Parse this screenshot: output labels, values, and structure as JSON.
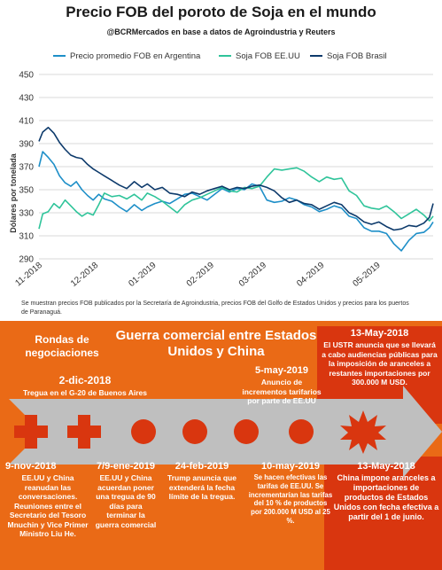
{
  "chart_data": {
    "type": "line",
    "title": "Precio FOB del poroto de Soja en el mundo",
    "subtitle": "@BCRMercados en base a datos de Agroindustria y Reuters",
    "ylabel": "Dólares por tonelada",
    "ylim": [
      290,
      450
    ],
    "yticks": [
      290,
      310,
      330,
      350,
      370,
      390,
      410,
      430,
      450
    ],
    "xlim": [
      "2018-11-01",
      "2019-05-31"
    ],
    "xticks": [
      "2018-11-01",
      "2018-12-01",
      "2019-01-01",
      "2019-02-01",
      "2019-03-01",
      "2019-04-01",
      "2019-05-01"
    ],
    "xtick_labels": [
      "11-2018",
      "12-2018",
      "01-2019",
      "02-2019",
      "03-2019",
      "04-2019",
      "05-2019"
    ],
    "grid": true,
    "legend_position": "top",
    "series": [
      {
        "name": "Precio promedio FOB en Argentina",
        "color": "#1e8fc8",
        "points": [
          [
            "2018-11-01",
            370
          ],
          [
            "2018-11-03",
            383
          ],
          [
            "2018-11-06",
            378
          ],
          [
            "2018-11-09",
            372
          ],
          [
            "2018-11-12",
            362
          ],
          [
            "2018-11-15",
            356
          ],
          [
            "2018-11-18",
            353
          ],
          [
            "2018-11-21",
            357
          ],
          [
            "2018-11-24",
            350
          ],
          [
            "2018-11-27",
            345
          ],
          [
            "2018-11-30",
            341
          ],
          [
            "2018-12-03",
            346
          ],
          [
            "2018-12-06",
            342
          ],
          [
            "2018-12-10",
            340
          ],
          [
            "2018-12-14",
            335
          ],
          [
            "2018-12-18",
            331
          ],
          [
            "2018-12-22",
            337
          ],
          [
            "2018-12-26",
            332
          ],
          [
            "2018-12-29",
            335
          ],
          [
            "2019-01-02",
            338
          ],
          [
            "2019-01-06",
            340
          ],
          [
            "2019-01-10",
            338
          ],
          [
            "2019-01-14",
            342
          ],
          [
            "2019-01-18",
            346
          ],
          [
            "2019-01-22",
            347
          ],
          [
            "2019-01-26",
            344
          ],
          [
            "2019-01-30",
            341
          ],
          [
            "2019-02-03",
            346
          ],
          [
            "2019-02-07",
            351
          ],
          [
            "2019-02-11",
            348
          ],
          [
            "2019-02-15",
            351
          ],
          [
            "2019-02-19",
            350
          ],
          [
            "2019-02-23",
            355
          ],
          [
            "2019-02-27",
            353
          ],
          [
            "2019-03-03",
            341
          ],
          [
            "2019-03-07",
            339
          ],
          [
            "2019-03-11",
            340
          ],
          [
            "2019-03-15",
            343
          ],
          [
            "2019-03-19",
            341
          ],
          [
            "2019-03-23",
            337
          ],
          [
            "2019-03-27",
            335
          ],
          [
            "2019-03-31",
            331
          ],
          [
            "2019-04-04",
            333
          ],
          [
            "2019-04-08",
            336
          ],
          [
            "2019-04-12",
            334
          ],
          [
            "2019-04-16",
            327
          ],
          [
            "2019-04-20",
            325
          ],
          [
            "2019-04-24",
            317
          ],
          [
            "2019-04-28",
            314
          ],
          [
            "2019-05-02",
            314
          ],
          [
            "2019-05-06",
            312
          ],
          [
            "2019-05-10",
            303
          ],
          [
            "2019-05-14",
            297
          ],
          [
            "2019-05-18",
            306
          ],
          [
            "2019-05-22",
            312
          ],
          [
            "2019-05-26",
            313
          ],
          [
            "2019-05-29",
            317
          ],
          [
            "2019-05-31",
            322
          ]
        ]
      },
      {
        "name": "Soja FOB EE.UU",
        "color": "#2fc49a",
        "points": [
          [
            "2018-11-01",
            316
          ],
          [
            "2018-11-03",
            329
          ],
          [
            "2018-11-06",
            331
          ],
          [
            "2018-11-09",
            338
          ],
          [
            "2018-11-12",
            334
          ],
          [
            "2018-11-15",
            341
          ],
          [
            "2018-11-18",
            336
          ],
          [
            "2018-11-21",
            331
          ],
          [
            "2018-11-24",
            327
          ],
          [
            "2018-11-27",
            330
          ],
          [
            "2018-11-30",
            328
          ],
          [
            "2018-12-03",
            337
          ],
          [
            "2018-12-06",
            347
          ],
          [
            "2018-12-10",
            344
          ],
          [
            "2018-12-14",
            345
          ],
          [
            "2018-12-18",
            342
          ],
          [
            "2018-12-22",
            346
          ],
          [
            "2018-12-26",
            341
          ],
          [
            "2018-12-29",
            347
          ],
          [
            "2019-01-02",
            344
          ],
          [
            "2019-01-06",
            340
          ],
          [
            "2019-01-10",
            335
          ],
          [
            "2019-01-14",
            330
          ],
          [
            "2019-01-18",
            337
          ],
          [
            "2019-01-22",
            341
          ],
          [
            "2019-01-26",
            343
          ],
          [
            "2019-01-30",
            346
          ],
          [
            "2019-02-03",
            349
          ],
          [
            "2019-02-07",
            352
          ],
          [
            "2019-02-11",
            349
          ],
          [
            "2019-02-15",
            348
          ],
          [
            "2019-02-19",
            352
          ],
          [
            "2019-02-23",
            351
          ],
          [
            "2019-02-27",
            353
          ],
          [
            "2019-03-03",
            361
          ],
          [
            "2019-03-07",
            368
          ],
          [
            "2019-03-11",
            367
          ],
          [
            "2019-03-15",
            368
          ],
          [
            "2019-03-19",
            369
          ],
          [
            "2019-03-23",
            366
          ],
          [
            "2019-03-27",
            361
          ],
          [
            "2019-03-31",
            357
          ],
          [
            "2019-04-04",
            361
          ],
          [
            "2019-04-08",
            359
          ],
          [
            "2019-04-12",
            360
          ],
          [
            "2019-04-16",
            349
          ],
          [
            "2019-04-20",
            345
          ],
          [
            "2019-04-24",
            336
          ],
          [
            "2019-04-28",
            334
          ],
          [
            "2019-05-02",
            333
          ],
          [
            "2019-05-06",
            336
          ],
          [
            "2019-05-10",
            331
          ],
          [
            "2019-05-14",
            325
          ],
          [
            "2019-05-18",
            329
          ],
          [
            "2019-05-22",
            333
          ],
          [
            "2019-05-26",
            328
          ],
          [
            "2019-05-29",
            323
          ],
          [
            "2019-05-31",
            327
          ]
        ]
      },
      {
        "name": "Soja FOB Brasil",
        "color": "#0d3a6b",
        "points": [
          [
            "2018-11-01",
            392
          ],
          [
            "2018-11-03",
            400
          ],
          [
            "2018-11-06",
            404
          ],
          [
            "2018-11-09",
            399
          ],
          [
            "2018-11-12",
            391
          ],
          [
            "2018-11-15",
            385
          ],
          [
            "2018-11-18",
            380
          ],
          [
            "2018-11-21",
            378
          ],
          [
            "2018-11-24",
            377
          ],
          [
            "2018-11-27",
            372
          ],
          [
            "2018-11-30",
            368
          ],
          [
            "2018-12-03",
            365
          ],
          [
            "2018-12-06",
            362
          ],
          [
            "2018-12-10",
            358
          ],
          [
            "2018-12-14",
            354
          ],
          [
            "2018-12-18",
            351
          ],
          [
            "2018-12-22",
            357
          ],
          [
            "2018-12-26",
            352
          ],
          [
            "2018-12-29",
            355
          ],
          [
            "2019-01-02",
            350
          ],
          [
            "2019-01-06",
            352
          ],
          [
            "2019-01-10",
            347
          ],
          [
            "2019-01-14",
            346
          ],
          [
            "2019-01-18",
            344
          ],
          [
            "2019-01-22",
            348
          ],
          [
            "2019-01-26",
            346
          ],
          [
            "2019-01-30",
            349
          ],
          [
            "2019-02-03",
            351
          ],
          [
            "2019-02-07",
            353
          ],
          [
            "2019-02-11",
            350
          ],
          [
            "2019-02-15",
            352
          ],
          [
            "2019-02-19",
            351
          ],
          [
            "2019-02-23",
            353
          ],
          [
            "2019-02-27",
            354
          ],
          [
            "2019-03-03",
            352
          ],
          [
            "2019-03-07",
            349
          ],
          [
            "2019-03-11",
            343
          ],
          [
            "2019-03-15",
            339
          ],
          [
            "2019-03-19",
            341
          ],
          [
            "2019-03-23",
            338
          ],
          [
            "2019-03-27",
            337
          ],
          [
            "2019-03-31",
            333
          ],
          [
            "2019-04-04",
            336
          ],
          [
            "2019-04-08",
            339
          ],
          [
            "2019-04-12",
            337
          ],
          [
            "2019-04-16",
            330
          ],
          [
            "2019-04-20",
            327
          ],
          [
            "2019-04-24",
            322
          ],
          [
            "2019-04-28",
            320
          ],
          [
            "2019-05-02",
            322
          ],
          [
            "2019-05-06",
            318
          ],
          [
            "2019-05-10",
            315
          ],
          [
            "2019-05-14",
            316
          ],
          [
            "2019-05-18",
            319
          ],
          [
            "2019-05-22",
            318
          ],
          [
            "2019-05-26",
            321
          ],
          [
            "2019-05-29",
            326
          ],
          [
            "2019-05-31",
            338
          ]
        ]
      }
    ]
  },
  "footnote": "Se muestran precios FOB publicados por la Secretaría de Agroindustria, precios FOB del Golfo de Estados Unidos y precios para los puertos de Paranaguá.",
  "timeline": {
    "rondas_label": "Rondas de negociaciones",
    "guerra_label": "Guerra comercial entre Estados Unidos y China",
    "colors": {
      "background": "#ea6a16",
      "arrow": "#bfbfbf",
      "marker": "#d9360f"
    },
    "events_top": [
      {
        "date": "2-dic-2018",
        "text": "Tregua en el G-20 de Buenos Aires"
      },
      {
        "date": "5-may-2019",
        "text": "Anuncio de incrementos tarifarios por parte de EE.UU"
      },
      {
        "date": "13-May-2018",
        "text": "El USTR anuncia que se llevará a cabo audiencias públicas para la imposición de aranceles a restantes importaciones por 300.000 M USD."
      }
    ],
    "events_bottom": [
      {
        "date": "9-nov-2018",
        "text": "EE.UU y China reanudan las conversaciones. Reuniones entre el Secretario del Tesoro Mnuchin y Vice Primer Ministro Liu He."
      },
      {
        "date": "7/9-ene-2019",
        "text": "EE.UU y China acuerdan poner una tregua de 90 días para terminar la guerra comercial"
      },
      {
        "date": "24-feb-2019",
        "text": "Trump anuncia que extenderá la fecha límite de la tregua."
      },
      {
        "date": "10-may-2019",
        "text": "Se hacen efectivas las tarifas de EE.UU. Se incrementarían las tarifas del 10 % de productos por 200.000 M USD al 25 %."
      },
      {
        "date": "13-May-2018",
        "text": "China impone aranceles a importaciones de productos de Estados Unidos con fecha efectiva a partir del 1 de junio."
      }
    ]
  }
}
